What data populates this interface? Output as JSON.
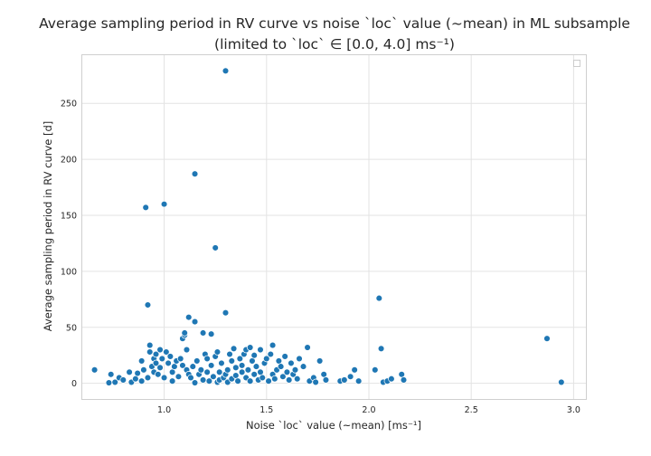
{
  "chart_data": {
    "type": "scatter",
    "title": "Average sampling period in RV curve vs noise `loc` value (~mean) in ML subsample",
    "subtitle": "(limited to `loc` ∈ [0.0, 4.0] ms⁻¹)",
    "xlabel": "Noise `loc` value (~mean) [ms⁻¹]",
    "ylabel": "Average sampling period in RV curve [d]",
    "xlim": [
      0.6,
      3.06
    ],
    "ylim": [
      -14,
      293
    ],
    "xticks": [
      1.0,
      1.5,
      2.0,
      2.5,
      3.0
    ],
    "xtick_labels": [
      "1.0",
      "1.5",
      "2.0",
      "2.5",
      "3.0"
    ],
    "yticks": [
      0,
      50,
      100,
      150,
      200,
      250
    ],
    "ytick_labels": [
      "0",
      "50",
      "100",
      "150",
      "200",
      "250"
    ],
    "grid": true,
    "legend": "top-right (empty)",
    "marker_color": "#1f77b4",
    "points": [
      [
        0.66,
        12
      ],
      [
        0.73,
        0.5
      ],
      [
        0.74,
        8
      ],
      [
        0.76,
        1
      ],
      [
        0.78,
        5
      ],
      [
        0.8,
        3
      ],
      [
        0.83,
        10
      ],
      [
        0.84,
        1
      ],
      [
        0.86,
        4
      ],
      [
        0.87,
        9
      ],
      [
        0.89,
        2
      ],
      [
        0.89,
        20
      ],
      [
        0.9,
        12
      ],
      [
        0.91,
        157
      ],
      [
        0.92,
        5
      ],
      [
        0.92,
        70
      ],
      [
        0.93,
        28
      ],
      [
        0.93,
        34
      ],
      [
        0.94,
        15
      ],
      [
        0.95,
        10
      ],
      [
        0.95,
        22
      ],
      [
        0.96,
        26
      ],
      [
        0.96,
        18
      ],
      [
        0.97,
        8
      ],
      [
        0.98,
        30
      ],
      [
        0.98,
        14
      ],
      [
        0.99,
        22
      ],
      [
        1.0,
        160
      ],
      [
        1.0,
        5
      ],
      [
        1.01,
        28
      ],
      [
        1.02,
        18
      ],
      [
        1.03,
        24
      ],
      [
        1.04,
        10
      ],
      [
        1.04,
        2
      ],
      [
        1.05,
        15
      ],
      [
        1.06,
        20
      ],
      [
        1.07,
        6
      ],
      [
        1.08,
        22
      ],
      [
        1.09,
        16
      ],
      [
        1.09,
        40
      ],
      [
        1.1,
        43
      ],
      [
        1.1,
        45
      ],
      [
        1.11,
        12
      ],
      [
        1.11,
        30
      ],
      [
        1.12,
        59
      ],
      [
        1.12,
        8
      ],
      [
        1.13,
        5
      ],
      [
        1.14,
        15
      ],
      [
        1.15,
        55
      ],
      [
        1.15,
        187
      ],
      [
        1.15,
        0.5
      ],
      [
        1.16,
        20
      ],
      [
        1.17,
        8
      ],
      [
        1.18,
        12
      ],
      [
        1.19,
        45
      ],
      [
        1.19,
        3
      ],
      [
        1.2,
        26
      ],
      [
        1.21,
        22
      ],
      [
        1.21,
        10
      ],
      [
        1.22,
        2
      ],
      [
        1.23,
        44
      ],
      [
        1.23,
        16
      ],
      [
        1.24,
        6
      ],
      [
        1.25,
        121
      ],
      [
        1.25,
        24
      ],
      [
        1.26,
        1
      ],
      [
        1.26,
        28
      ],
      [
        1.27,
        10
      ],
      [
        1.27,
        3
      ],
      [
        1.28,
        18
      ],
      [
        1.29,
        5
      ],
      [
        1.3,
        279
      ],
      [
        1.3,
        63
      ],
      [
        1.3,
        8
      ],
      [
        1.31,
        12
      ],
      [
        1.31,
        1
      ],
      [
        1.32,
        26
      ],
      [
        1.33,
        20
      ],
      [
        1.33,
        4
      ],
      [
        1.34,
        31
      ],
      [
        1.35,
        14
      ],
      [
        1.35,
        7
      ],
      [
        1.36,
        2
      ],
      [
        1.37,
        22
      ],
      [
        1.38,
        10
      ],
      [
        1.38,
        16
      ],
      [
        1.39,
        26
      ],
      [
        1.4,
        5
      ],
      [
        1.4,
        30
      ],
      [
        1.41,
        12
      ],
      [
        1.42,
        32
      ],
      [
        1.42,
        2
      ],
      [
        1.43,
        20
      ],
      [
        1.44,
        8
      ],
      [
        1.44,
        25
      ],
      [
        1.45,
        15
      ],
      [
        1.46,
        3
      ],
      [
        1.47,
        30
      ],
      [
        1.47,
        10
      ],
      [
        1.48,
        5
      ],
      [
        1.49,
        18
      ],
      [
        1.5,
        22
      ],
      [
        1.51,
        2
      ],
      [
        1.52,
        26
      ],
      [
        1.53,
        34
      ],
      [
        1.53,
        8
      ],
      [
        1.54,
        4
      ],
      [
        1.55,
        12
      ],
      [
        1.56,
        20
      ],
      [
        1.57,
        15
      ],
      [
        1.58,
        6
      ],
      [
        1.59,
        24
      ],
      [
        1.6,
        10
      ],
      [
        1.61,
        3
      ],
      [
        1.62,
        18
      ],
      [
        1.63,
        8
      ],
      [
        1.64,
        12
      ],
      [
        1.65,
        4
      ],
      [
        1.66,
        22
      ],
      [
        1.68,
        15
      ],
      [
        1.7,
        32
      ],
      [
        1.71,
        2
      ],
      [
        1.73,
        5
      ],
      [
        1.74,
        1
      ],
      [
        1.76,
        20
      ],
      [
        1.78,
        8
      ],
      [
        1.79,
        3
      ],
      [
        1.86,
        2
      ],
      [
        1.88,
        3
      ],
      [
        1.91,
        6
      ],
      [
        1.93,
        12
      ],
      [
        1.95,
        2
      ],
      [
        2.03,
        12
      ],
      [
        2.05,
        76
      ],
      [
        2.06,
        31
      ],
      [
        2.07,
        1
      ],
      [
        2.09,
        2
      ],
      [
        2.11,
        4
      ],
      [
        2.16,
        8
      ],
      [
        2.17,
        3
      ],
      [
        2.87,
        40
      ],
      [
        2.94,
        1
      ]
    ]
  }
}
